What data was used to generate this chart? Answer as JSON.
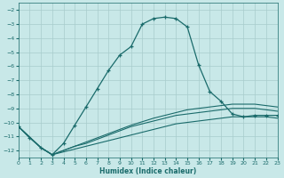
{
  "xlabel": "Humidex (Indice chaleur)",
  "bg_color": "#c8e8e8",
  "grid_color": "#a8cccc",
  "line_color": "#1a6b6b",
  "xlim": [
    0,
    23
  ],
  "ylim": [
    -12.5,
    -1.5
  ],
  "yticks": [
    -2,
    -3,
    -4,
    -5,
    -6,
    -7,
    -8,
    -9,
    -10,
    -11,
    -12
  ],
  "xticks": [
    0,
    1,
    2,
    3,
    4,
    5,
    6,
    7,
    8,
    9,
    10,
    11,
    12,
    13,
    14,
    15,
    16,
    17,
    18,
    19,
    20,
    21,
    22,
    23
  ],
  "main_x": [
    0,
    1,
    2,
    3,
    4,
    5,
    6,
    7,
    8,
    9,
    10,
    11,
    12,
    13,
    14,
    15,
    16,
    17,
    18,
    19,
    20,
    21,
    22,
    23
  ],
  "main_y": [
    -10.3,
    -11.1,
    -11.8,
    -12.3,
    -11.5,
    -10.2,
    -8.9,
    -7.6,
    -6.3,
    -5.2,
    -4.6,
    -3.0,
    -2.6,
    -2.5,
    -2.6,
    -3.2,
    -5.9,
    -7.8,
    -8.5,
    -9.4,
    -9.6,
    -9.5,
    -9.5,
    -9.5
  ],
  "diag1_x": [
    0,
    2,
    3,
    4,
    5,
    6,
    7,
    8,
    9,
    10,
    11,
    12,
    13,
    14,
    15,
    16,
    17,
    18,
    19,
    20,
    21,
    22,
    23
  ],
  "diag1_y": [
    -10.3,
    -11.8,
    -12.3,
    -12.0,
    -11.7,
    -11.4,
    -11.1,
    -10.8,
    -10.5,
    -10.2,
    -9.95,
    -9.7,
    -9.5,
    -9.3,
    -9.1,
    -9.0,
    -8.9,
    -8.8,
    -8.7,
    -8.7,
    -8.7,
    -8.8,
    -8.9
  ],
  "diag2_x": [
    0,
    2,
    3,
    4,
    5,
    6,
    7,
    8,
    9,
    10,
    11,
    12,
    13,
    14,
    15,
    16,
    17,
    18,
    19,
    20,
    21,
    22,
    23
  ],
  "diag2_y": [
    -10.3,
    -11.8,
    -12.3,
    -12.0,
    -11.7,
    -11.5,
    -11.2,
    -10.9,
    -10.6,
    -10.3,
    -10.1,
    -9.9,
    -9.7,
    -9.5,
    -9.4,
    -9.3,
    -9.2,
    -9.1,
    -9.0,
    -9.0,
    -9.0,
    -9.1,
    -9.2
  ],
  "diag3_x": [
    0,
    2,
    3,
    4,
    5,
    6,
    7,
    8,
    9,
    10,
    11,
    12,
    13,
    14,
    15,
    16,
    17,
    18,
    19,
    20,
    21,
    22,
    23
  ],
  "diag3_y": [
    -10.3,
    -11.8,
    -12.3,
    -12.1,
    -11.9,
    -11.7,
    -11.5,
    -11.3,
    -11.1,
    -10.9,
    -10.7,
    -10.5,
    -10.3,
    -10.1,
    -10.0,
    -9.9,
    -9.8,
    -9.7,
    -9.6,
    -9.6,
    -9.6,
    -9.6,
    -9.7
  ]
}
